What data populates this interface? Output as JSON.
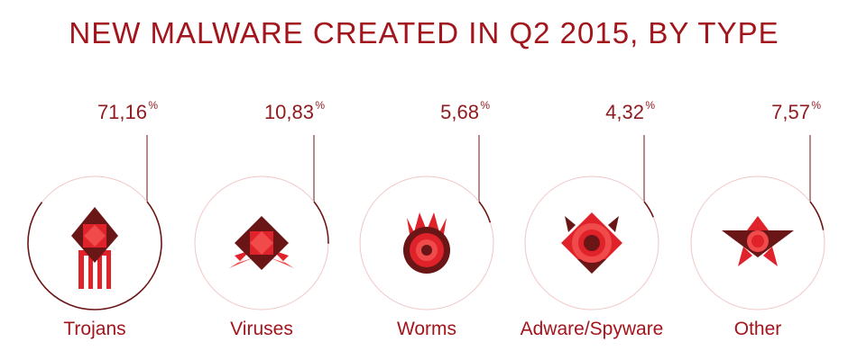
{
  "chart_data": {
    "type": "pie",
    "title": "NEW MALWARE CREATED IN Q2 2015, BY TYPE",
    "categories": [
      "Trojans",
      "Viruses",
      "Worms",
      "Adware/Spyware",
      "Other"
    ],
    "values": [
      71.16,
      10.83,
      5.68,
      4.32,
      7.57
    ],
    "value_labels": [
      "71,16",
      "10,83",
      "5,68",
      "4,32",
      "7,57"
    ],
    "unit_label": "%",
    "icons": [
      "trojan-icon",
      "virus-icon",
      "worm-icon",
      "adware-icon",
      "other-malware-icon"
    ]
  },
  "colors": {
    "dark": "#6b1616",
    "accent": "#a3151c",
    "bright": "#e0222a",
    "light": "#f04a4a",
    "ring": "#f1c6c6"
  }
}
